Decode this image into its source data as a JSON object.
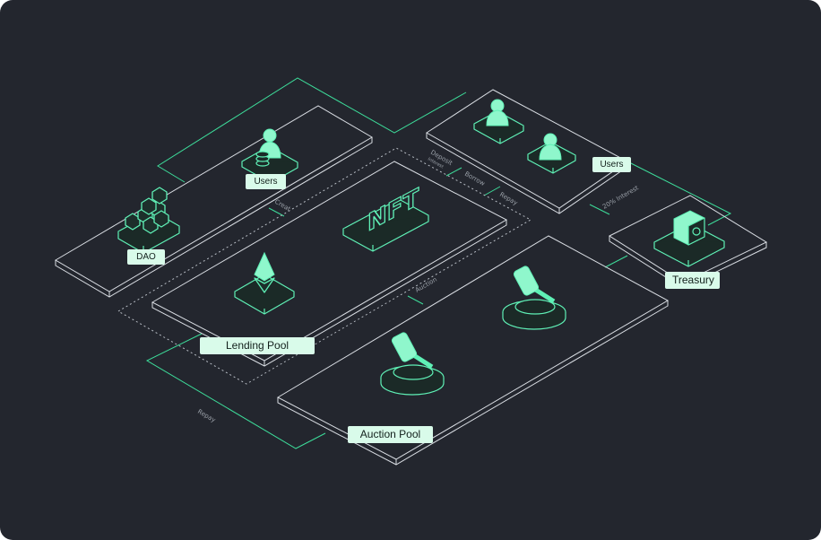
{
  "labels": {
    "dao": "DAO",
    "users_left": "Users",
    "users_right": "Users",
    "lending_pool": "Lending Pool",
    "auction_pool": "Auction Pool",
    "treasury": "Treasury"
  },
  "edge_labels": {
    "creat": "Creat",
    "deposit": "Deposit",
    "deposit_sub": "Interest",
    "borrow": "Borrow",
    "repay_top": "Repay",
    "interest": "20% Interest",
    "auction": "Auction",
    "repay_bottom": "Repay"
  },
  "icons": {
    "nft_text": "NFT"
  },
  "colors": {
    "background": "#23262e",
    "accent": "#3ddc9a",
    "label_bg": "#d9fbea",
    "platform_stroke": "#d9dde3"
  }
}
